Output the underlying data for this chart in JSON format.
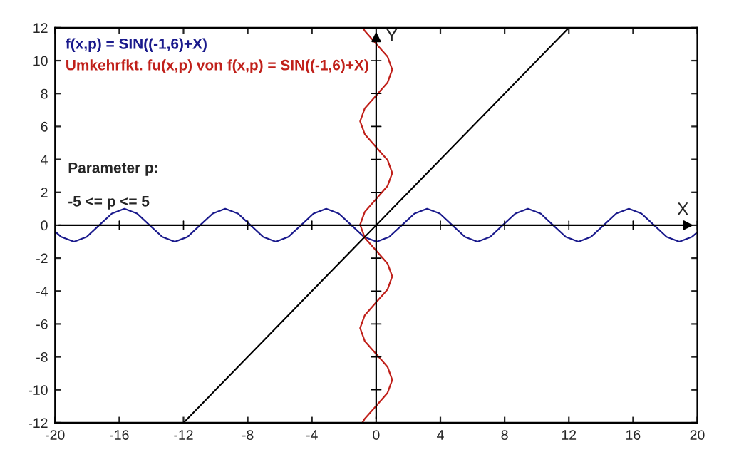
{
  "chart_data": {
    "type": "line",
    "xlabel": "X",
    "ylabel": "Y",
    "xlim": [
      -20,
      20
    ],
    "ylim": [
      -12,
      12
    ],
    "xticks": [
      -20,
      -16,
      -12,
      -8,
      -4,
      0,
      4,
      8,
      12,
      16,
      20
    ],
    "yticks": [
      -12,
      -10,
      -8,
      -6,
      -4,
      -2,
      0,
      2,
      4,
      6,
      8,
      10,
      12
    ],
    "grid": false,
    "legend": "top left",
    "series": [
      {
        "name": "f(x,p) = SIN((-1,6)+X)",
        "color": "#1a1a8c",
        "x": [
          -20,
          -19.61,
          -18.82,
          -18.03,
          -17.25,
          -16.46,
          -15.68,
          -14.89,
          -14.11,
          -13.32,
          -12.54,
          -11.75,
          -10.97,
          -10.18,
          -9.4,
          -8.61,
          -7.82,
          -7.04,
          -6.25,
          -5.47,
          -4.68,
          -3.9,
          -3.11,
          -2.33,
          -1.54,
          -0.76,
          0.03,
          0.81,
          1.6,
          2.39,
          3.17,
          3.96,
          4.74,
          5.53,
          6.31,
          7.1,
          7.88,
          8.67,
          9.45,
          10.24,
          11.02,
          11.81,
          12.6,
          13.38,
          14.17,
          14.95,
          15.74,
          16.52,
          17.31,
          18.09,
          18.88,
          19.66,
          20
        ],
        "values": [
          -0.38,
          -0.71,
          -1,
          -0.71,
          0,
          0.71,
          1,
          0.71,
          0,
          -0.71,
          -1,
          -0.71,
          0,
          0.71,
          1,
          0.71,
          0,
          -0.71,
          -1,
          -0.71,
          0,
          0.71,
          1,
          0.71,
          0,
          -0.71,
          -1,
          -0.71,
          0,
          0.71,
          1,
          0.71,
          0,
          -0.71,
          -1,
          -0.71,
          0,
          0.71,
          1,
          0.71,
          0,
          -0.71,
          -1,
          -0.71,
          0,
          0.71,
          1,
          0.71,
          0,
          -0.71,
          -1,
          -0.71,
          -0.43
        ]
      },
      {
        "name": "Umkehrfkt. fu(x,p) von f(x,p) = SIN((-1,6)+X)",
        "color": "#c0201a",
        "x": [
          -0.86,
          -0.71,
          0,
          0.71,
          1,
          0.71,
          0,
          -0.71,
          -1,
          -0.71,
          0,
          0.71,
          1,
          0.71,
          0,
          -0.71,
          -1,
          -0.71,
          0,
          0.71,
          1,
          0.71,
          0,
          -0.71,
          -1,
          -0.71,
          0,
          0.71,
          1,
          0.71,
          0,
          -0.71,
          -0.83
        ],
        "values": [
          -12,
          -11.75,
          -10.97,
          -10.18,
          -9.4,
          -8.61,
          -7.82,
          -7.04,
          -6.25,
          -5.47,
          -4.68,
          -3.9,
          -3.11,
          -2.33,
          -1.54,
          -0.76,
          0.03,
          0.81,
          1.6,
          2.39,
          3.17,
          3.96,
          4.74,
          5.53,
          6.31,
          7.1,
          7.88,
          8.67,
          9.45,
          10.24,
          11.02,
          11.81,
          12
        ]
      },
      {
        "color": "#000000",
        "x": [
          -12,
          12
        ],
        "values": [
          -12,
          12
        ]
      }
    ],
    "annotations": [
      "Parameter p:",
      "-5 <= p <= 5"
    ]
  }
}
